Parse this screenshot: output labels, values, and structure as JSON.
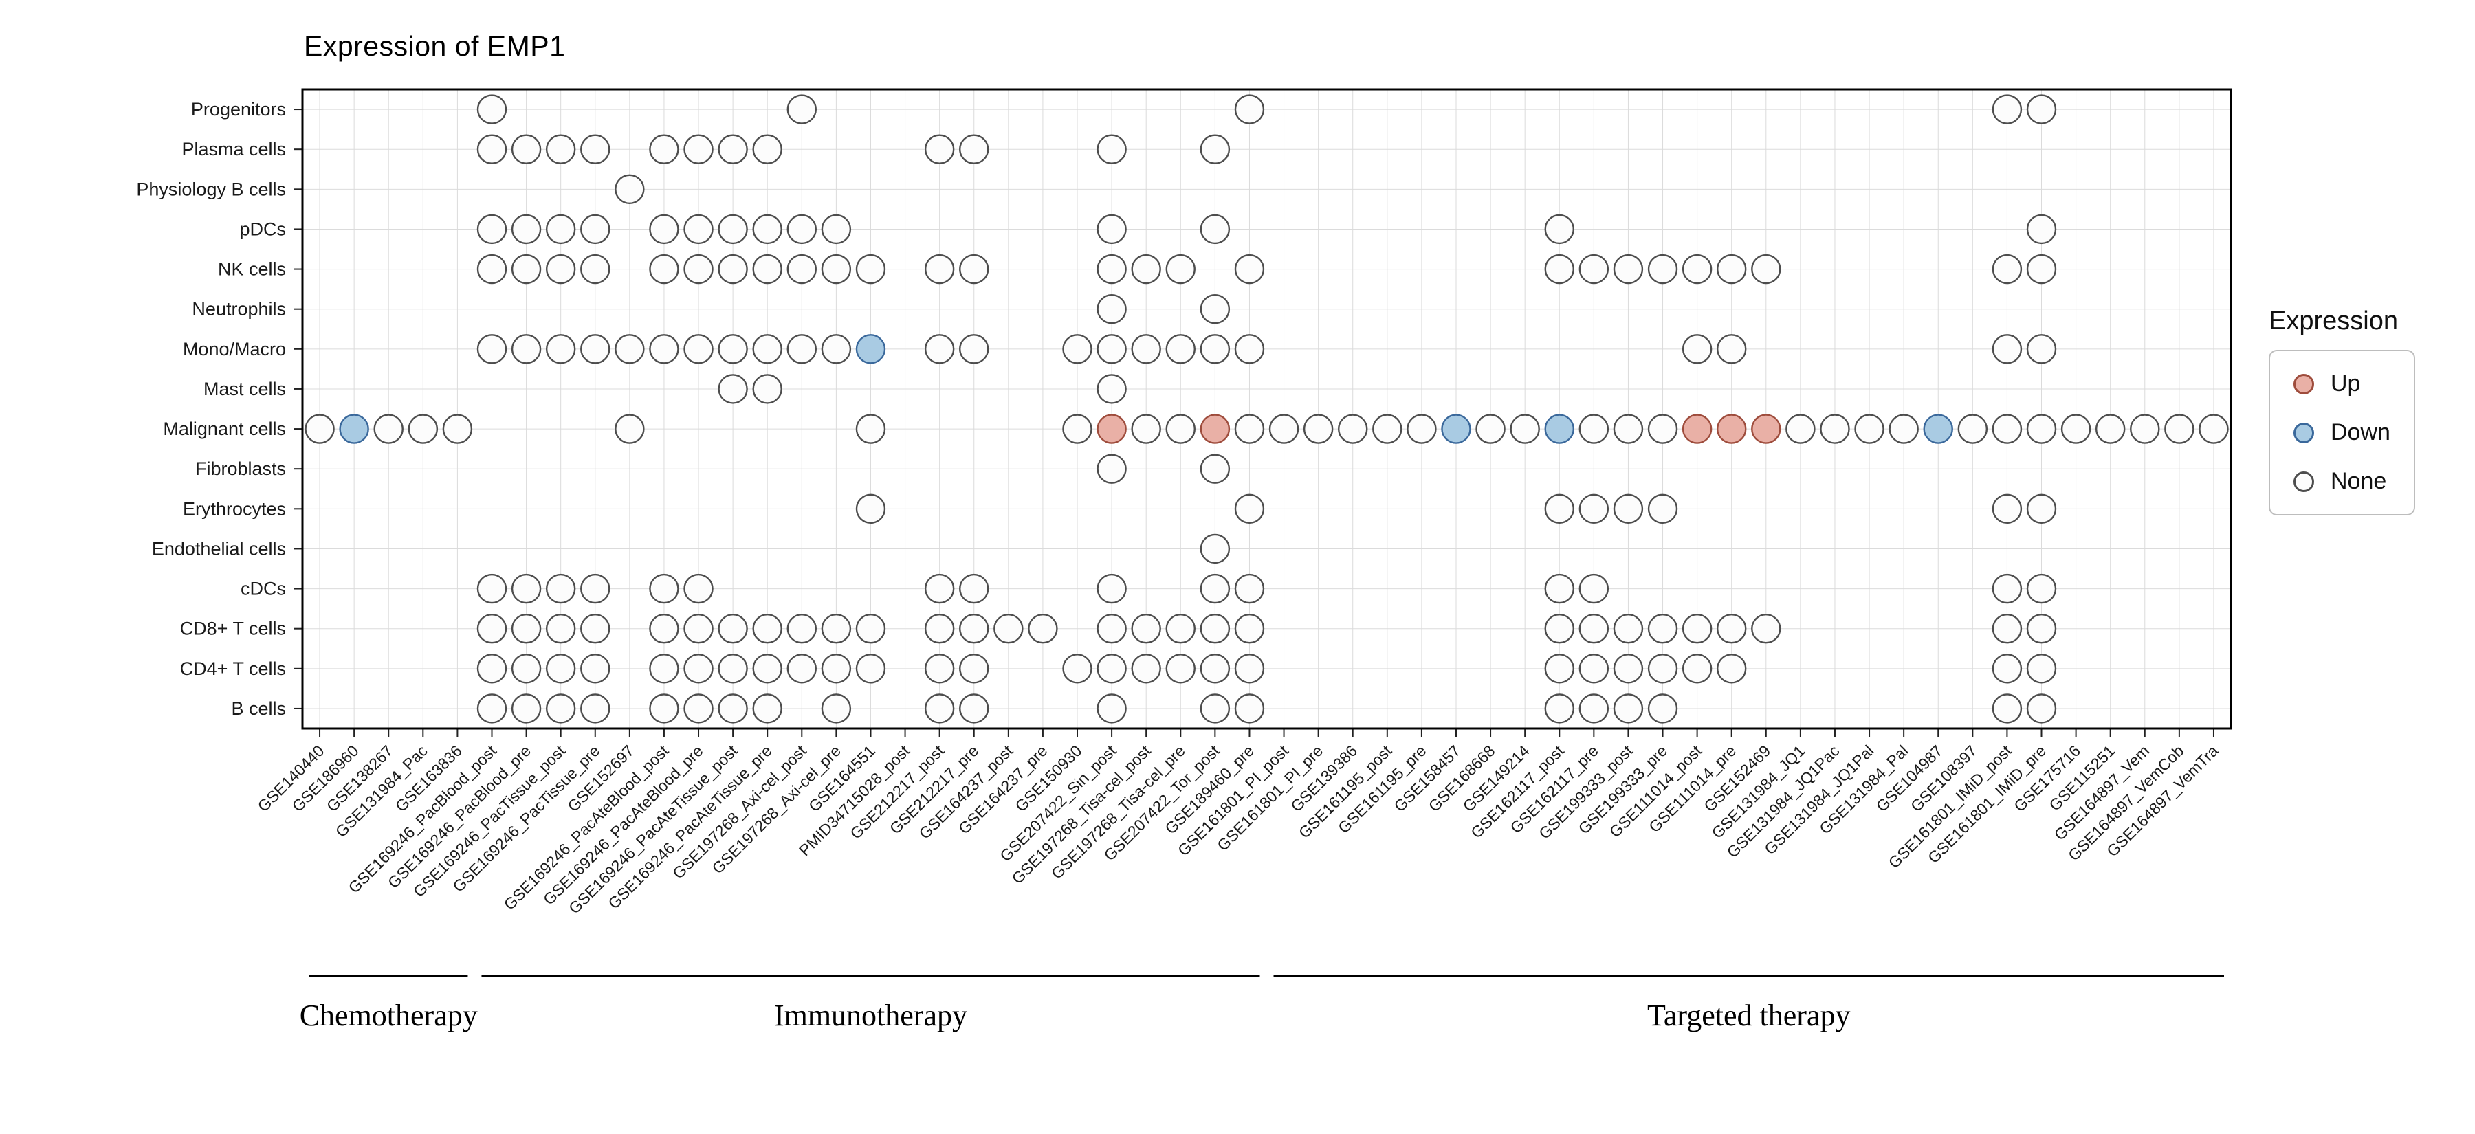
{
  "page": {
    "background": "#FFFFFF"
  },
  "chart_data": {
    "type": "heatmap",
    "subtype": "categorical-dot-matrix",
    "title": "Expression of EMP1",
    "xlabel": "",
    "ylabel": "",
    "grid": true,
    "states": {
      "u": "Up",
      "d": "Down",
      "n": "None"
    },
    "style": {
      "grid_color": "#DBDBDB",
      "panel_border": "#000000",
      "tick_color": "#222222",
      "label_color": "#1A1A1A"
    },
    "legend": {
      "title": "Expression",
      "position": "right",
      "items": [
        {
          "label": "Up",
          "state": "u",
          "fill": "#E9B0A6",
          "stroke": "#9E4C3C"
        },
        {
          "label": "Down",
          "state": "d",
          "fill": "#A9CBE3",
          "stroke": "#3A689B"
        },
        {
          "label": "None",
          "state": "n",
          "fill": "#FCFCFC",
          "stroke": "#4D4D4D"
        }
      ]
    },
    "x_categories": [
      "GSE140440",
      "GSE186960",
      "GSE138267",
      "GSE131984_Pac",
      "GSE163836",
      "GSE169246_PacBlood_post",
      "GSE169246_PacBlood_pre",
      "GSE169246_PacTissue_post",
      "GSE169246_PacTissue_pre",
      "GSE152697",
      "GSE169246_PacAteBlood_post",
      "GSE169246_PacAteBlood_pre",
      "GSE169246_PacAteTissue_post",
      "GSE169246_PacAteTissue_pre",
      "GSE197268_Axi-cel_post",
      "GSE197268_Axi-cel_pre",
      "GSE164551",
      "PMID34715028_post",
      "GSE212217_post",
      "GSE212217_pre",
      "GSE164237_post",
      "GSE164237_pre",
      "GSE150930",
      "GSE207422_Sin_post",
      "GSE197268_Tisa-cel_post",
      "GSE197268_Tisa-cel_pre",
      "GSE207422_Tor_post",
      "GSE189460_pre",
      "GSE161801_PI_post",
      "GSE161801_PI_pre",
      "GSE139386",
      "GSE161195_post",
      "GSE161195_pre",
      "GSE158457",
      "GSE168668",
      "GSE149214",
      "GSE162117_post",
      "GSE162117_pre",
      "GSE199333_post",
      "GSE199333_pre",
      "GSE111014_post",
      "GSE111014_pre",
      "GSE152469",
      "GSE131984_JQ1",
      "GSE131984_JQ1Pac",
      "GSE131984_JQ1Pal",
      "GSE131984_Pal",
      "GSE104987",
      "GSE108397",
      "GSE161801_IMiD_post",
      "GSE161801_IMiD_pre",
      "GSE175716",
      "GSE115251",
      "GSE164897_Vem",
      "GSE164897_VemCob",
      "GSE164897_VemTra"
    ],
    "groups": [
      {
        "label": "Chemotherapy",
        "start": 0,
        "end": 4
      },
      {
        "label": "Immunotherapy",
        "start": 5,
        "end": 27
      },
      {
        "label": "Targeted therapy",
        "start": 28,
        "end": 55
      }
    ],
    "rows": [
      {
        "label": "Progenitors",
        "dots": [
          [
            5,
            "n"
          ],
          [
            14,
            "n"
          ],
          [
            27,
            "n"
          ],
          [
            49,
            "n"
          ],
          [
            50,
            "n"
          ]
        ]
      },
      {
        "label": "Plasma cells",
        "dots": [
          [
            5,
            "n"
          ],
          [
            6,
            "n"
          ],
          [
            7,
            "n"
          ],
          [
            8,
            "n"
          ],
          [
            10,
            "n"
          ],
          [
            11,
            "n"
          ],
          [
            12,
            "n"
          ],
          [
            13,
            "n"
          ],
          [
            18,
            "n"
          ],
          [
            19,
            "n"
          ],
          [
            23,
            "n"
          ],
          [
            26,
            "n"
          ]
        ]
      },
      {
        "label": "Physiology B cells",
        "dots": [
          [
            9,
            "n"
          ]
        ]
      },
      {
        "label": "pDCs",
        "dots": [
          [
            5,
            "n"
          ],
          [
            6,
            "n"
          ],
          [
            7,
            "n"
          ],
          [
            8,
            "n"
          ],
          [
            10,
            "n"
          ],
          [
            11,
            "n"
          ],
          [
            12,
            "n"
          ],
          [
            13,
            "n"
          ],
          [
            14,
            "n"
          ],
          [
            15,
            "n"
          ],
          [
            23,
            "n"
          ],
          [
            26,
            "n"
          ],
          [
            36,
            "n"
          ],
          [
            50,
            "n"
          ]
        ]
      },
      {
        "label": "NK cells",
        "dots": [
          [
            5,
            "n"
          ],
          [
            6,
            "n"
          ],
          [
            7,
            "n"
          ],
          [
            8,
            "n"
          ],
          [
            10,
            "n"
          ],
          [
            11,
            "n"
          ],
          [
            12,
            "n"
          ],
          [
            13,
            "n"
          ],
          [
            14,
            "n"
          ],
          [
            15,
            "n"
          ],
          [
            16,
            "n"
          ],
          [
            18,
            "n"
          ],
          [
            19,
            "n"
          ],
          [
            23,
            "n"
          ],
          [
            24,
            "n"
          ],
          [
            25,
            "n"
          ],
          [
            27,
            "n"
          ],
          [
            36,
            "n"
          ],
          [
            37,
            "n"
          ],
          [
            38,
            "n"
          ],
          [
            39,
            "n"
          ],
          [
            40,
            "n"
          ],
          [
            41,
            "n"
          ],
          [
            42,
            "n"
          ],
          [
            49,
            "n"
          ],
          [
            50,
            "n"
          ]
        ]
      },
      {
        "label": "Neutrophils",
        "dots": [
          [
            23,
            "n"
          ],
          [
            26,
            "n"
          ]
        ]
      },
      {
        "label": "Mono/Macro",
        "dots": [
          [
            5,
            "n"
          ],
          [
            6,
            "n"
          ],
          [
            7,
            "n"
          ],
          [
            8,
            "n"
          ],
          [
            9,
            "n"
          ],
          [
            10,
            "n"
          ],
          [
            11,
            "n"
          ],
          [
            12,
            "n"
          ],
          [
            13,
            "n"
          ],
          [
            14,
            "n"
          ],
          [
            15,
            "n"
          ],
          [
            16,
            "d"
          ],
          [
            18,
            "n"
          ],
          [
            19,
            "n"
          ],
          [
            22,
            "n"
          ],
          [
            23,
            "n"
          ],
          [
            24,
            "n"
          ],
          [
            25,
            "n"
          ],
          [
            26,
            "n"
          ],
          [
            27,
            "n"
          ],
          [
            40,
            "n"
          ],
          [
            41,
            "n"
          ],
          [
            49,
            "n"
          ],
          [
            50,
            "n"
          ]
        ]
      },
      {
        "label": "Mast cells",
        "dots": [
          [
            12,
            "n"
          ],
          [
            13,
            "n"
          ],
          [
            23,
            "n"
          ]
        ]
      },
      {
        "label": "Malignant cells",
        "dots": [
          [
            0,
            "n"
          ],
          [
            1,
            "d"
          ],
          [
            2,
            "n"
          ],
          [
            3,
            "n"
          ],
          [
            4,
            "n"
          ],
          [
            9,
            "n"
          ],
          [
            16,
            "n"
          ],
          [
            22,
            "n"
          ],
          [
            23,
            "u"
          ],
          [
            24,
            "n"
          ],
          [
            25,
            "n"
          ],
          [
            26,
            "u"
          ],
          [
            27,
            "n"
          ],
          [
            28,
            "n"
          ],
          [
            29,
            "n"
          ],
          [
            30,
            "n"
          ],
          [
            31,
            "n"
          ],
          [
            32,
            "n"
          ],
          [
            33,
            "d"
          ],
          [
            34,
            "n"
          ],
          [
            35,
            "n"
          ],
          [
            36,
            "d"
          ],
          [
            37,
            "n"
          ],
          [
            38,
            "n"
          ],
          [
            39,
            "n"
          ],
          [
            40,
            "u"
          ],
          [
            41,
            "u"
          ],
          [
            42,
            "u"
          ],
          [
            43,
            "n"
          ],
          [
            44,
            "n"
          ],
          [
            45,
            "n"
          ],
          [
            46,
            "n"
          ],
          [
            47,
            "d"
          ],
          [
            48,
            "n"
          ],
          [
            49,
            "n"
          ],
          [
            50,
            "n"
          ],
          [
            51,
            "n"
          ],
          [
            52,
            "n"
          ],
          [
            53,
            "n"
          ],
          [
            54,
            "n"
          ],
          [
            55,
            "n"
          ]
        ]
      },
      {
        "label": "Fibroblasts",
        "dots": [
          [
            23,
            "n"
          ],
          [
            26,
            "n"
          ]
        ]
      },
      {
        "label": "Erythrocytes",
        "dots": [
          [
            16,
            "n"
          ],
          [
            27,
            "n"
          ],
          [
            36,
            "n"
          ],
          [
            37,
            "n"
          ],
          [
            38,
            "n"
          ],
          [
            39,
            "n"
          ],
          [
            49,
            "n"
          ],
          [
            50,
            "n"
          ]
        ]
      },
      {
        "label": "Endothelial cells",
        "dots": [
          [
            26,
            "n"
          ]
        ]
      },
      {
        "label": "cDCs",
        "dots": [
          [
            5,
            "n"
          ],
          [
            6,
            "n"
          ],
          [
            7,
            "n"
          ],
          [
            8,
            "n"
          ],
          [
            10,
            "n"
          ],
          [
            11,
            "n"
          ],
          [
            18,
            "n"
          ],
          [
            19,
            "n"
          ],
          [
            23,
            "n"
          ],
          [
            26,
            "n"
          ],
          [
            27,
            "n"
          ],
          [
            36,
            "n"
          ],
          [
            37,
            "n"
          ],
          [
            49,
            "n"
          ],
          [
            50,
            "n"
          ]
        ]
      },
      {
        "label": "CD8+ T cells",
        "dots": [
          [
            5,
            "n"
          ],
          [
            6,
            "n"
          ],
          [
            7,
            "n"
          ],
          [
            8,
            "n"
          ],
          [
            10,
            "n"
          ],
          [
            11,
            "n"
          ],
          [
            12,
            "n"
          ],
          [
            13,
            "n"
          ],
          [
            14,
            "n"
          ],
          [
            15,
            "n"
          ],
          [
            16,
            "n"
          ],
          [
            18,
            "n"
          ],
          [
            19,
            "n"
          ],
          [
            20,
            "n"
          ],
          [
            21,
            "n"
          ],
          [
            23,
            "n"
          ],
          [
            24,
            "n"
          ],
          [
            25,
            "n"
          ],
          [
            26,
            "n"
          ],
          [
            27,
            "n"
          ],
          [
            36,
            "n"
          ],
          [
            37,
            "n"
          ],
          [
            38,
            "n"
          ],
          [
            39,
            "n"
          ],
          [
            40,
            "n"
          ],
          [
            41,
            "n"
          ],
          [
            42,
            "n"
          ],
          [
            49,
            "n"
          ],
          [
            50,
            "n"
          ]
        ]
      },
      {
        "label": "CD4+ T cells",
        "dots": [
          [
            5,
            "n"
          ],
          [
            6,
            "n"
          ],
          [
            7,
            "n"
          ],
          [
            8,
            "n"
          ],
          [
            10,
            "n"
          ],
          [
            11,
            "n"
          ],
          [
            12,
            "n"
          ],
          [
            13,
            "n"
          ],
          [
            14,
            "n"
          ],
          [
            15,
            "n"
          ],
          [
            16,
            "n"
          ],
          [
            18,
            "n"
          ],
          [
            19,
            "n"
          ],
          [
            22,
            "n"
          ],
          [
            23,
            "n"
          ],
          [
            24,
            "n"
          ],
          [
            25,
            "n"
          ],
          [
            26,
            "n"
          ],
          [
            27,
            "n"
          ],
          [
            36,
            "n"
          ],
          [
            37,
            "n"
          ],
          [
            38,
            "n"
          ],
          [
            39,
            "n"
          ],
          [
            40,
            "n"
          ],
          [
            41,
            "n"
          ],
          [
            49,
            "n"
          ],
          [
            50,
            "n"
          ]
        ]
      },
      {
        "label": "B cells",
        "dots": [
          [
            5,
            "n"
          ],
          [
            6,
            "n"
          ],
          [
            7,
            "n"
          ],
          [
            8,
            "n"
          ],
          [
            10,
            "n"
          ],
          [
            11,
            "n"
          ],
          [
            12,
            "n"
          ],
          [
            13,
            "n"
          ],
          [
            15,
            "n"
          ],
          [
            18,
            "n"
          ],
          [
            19,
            "n"
          ],
          [
            23,
            "n"
          ],
          [
            26,
            "n"
          ],
          [
            27,
            "n"
          ],
          [
            36,
            "n"
          ],
          [
            37,
            "n"
          ],
          [
            38,
            "n"
          ],
          [
            39,
            "n"
          ],
          [
            49,
            "n"
          ],
          [
            50,
            "n"
          ]
        ]
      }
    ]
  }
}
